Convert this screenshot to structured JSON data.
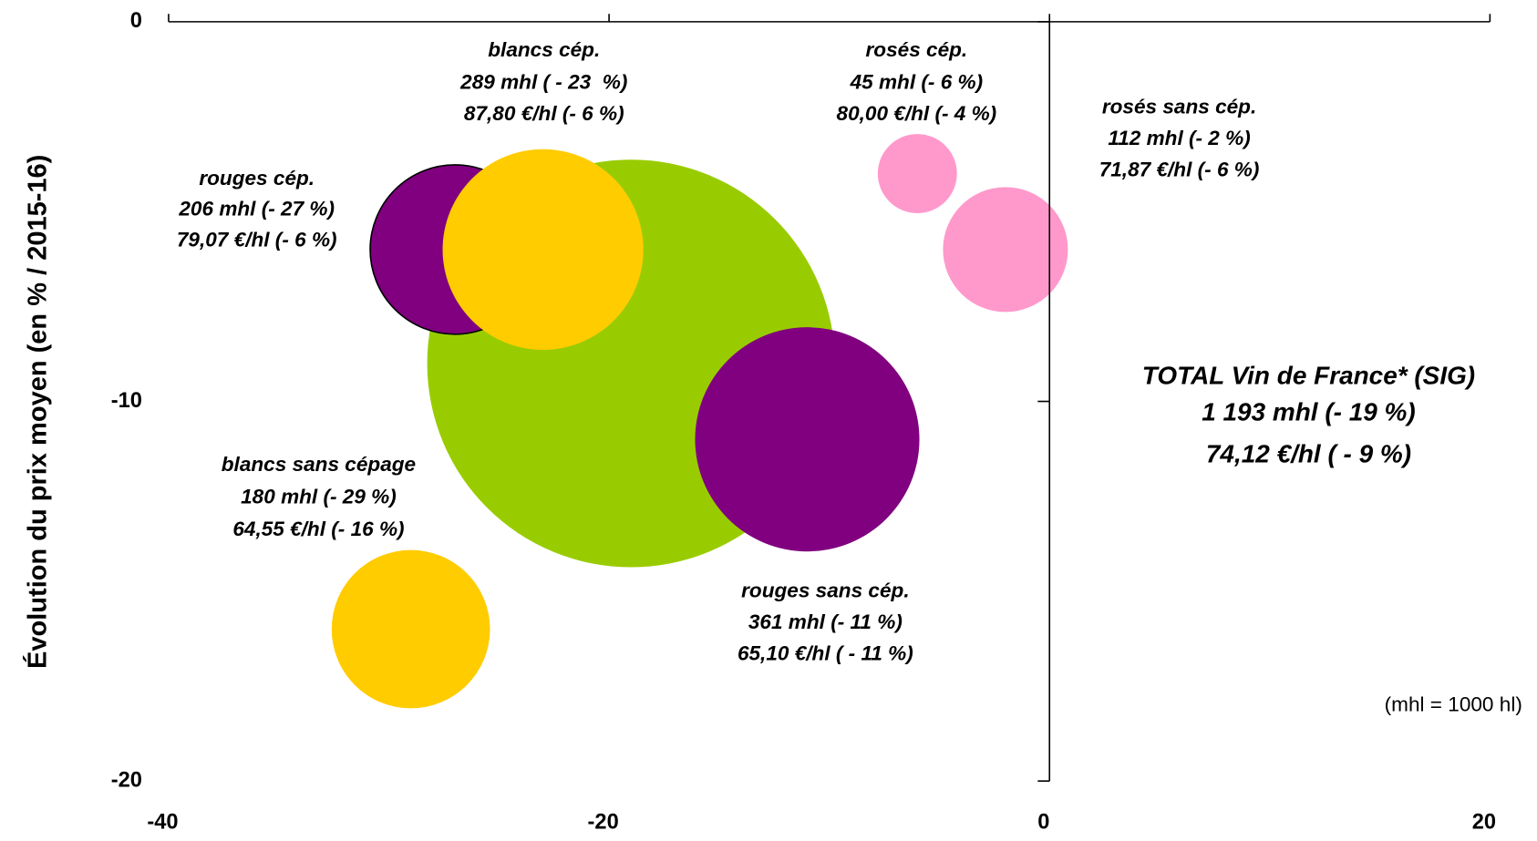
{
  "chart_data": {
    "type": "bubble",
    "y_label": "Évolution du prix moyen (en % / 2015-16)",
    "xlim": [
      -40,
      20
    ],
    "xticks": [
      -40,
      -20,
      0,
      20
    ],
    "ylim": [
      -20,
      0
    ],
    "yticks": [
      0,
      -10,
      -20
    ],
    "points": [
      {
        "x": -19,
        "y": -9,
        "size": 1193,
        "color": "#99CC00",
        "label": [
          "TOTAL Vin de France* (SIG)",
          "1 193 mhl (- 19 %)",
          "74,12 €/hl ( - 9 %)"
        ]
      },
      {
        "x": -27,
        "y": -6,
        "size": 206,
        "color": "#800080",
        "label": [
          "rouges cép.",
          "206 mhl (- 27 %)",
          "79,07 €/hl (- 6 %)"
        ]
      },
      {
        "x": -23,
        "y": -6,
        "size": 289,
        "color": "#FFCC00",
        "label": [
          "blancs cép.",
          "289 mhl ( - 23  %)",
          "87,80 €/hl (- 6 %)"
        ]
      },
      {
        "x": -11,
        "y": -11,
        "size": 361,
        "color": "#800080",
        "label": [
          "rouges sans cép.",
          "361 mhl (- 11 %)",
          "65,10 €/hl ( - 11 %)"
        ]
      },
      {
        "x": -29,
        "y": -16,
        "size": 180,
        "color": "#FFCC00",
        "label": [
          "blancs sans cépage",
          "180 mhl (- 29 %)",
          "64,55 €/hl (- 16 %)"
        ]
      },
      {
        "x": -6,
        "y": -4,
        "size": 45,
        "color": "#FF99CC",
        "label": [
          "rosés cép.",
          "45 mhl (- 6 %)",
          "80,00 €/hl (- 4 %)"
        ]
      },
      {
        "x": -2,
        "y": -6,
        "size": 112,
        "color": "#FF99CC",
        "label": [
          "rosés sans cép.",
          "112 mhl (- 2 %)",
          "71,87 €/hl (- 6 %)"
        ]
      }
    ],
    "note": "(mhl = 1000 hl)"
  }
}
